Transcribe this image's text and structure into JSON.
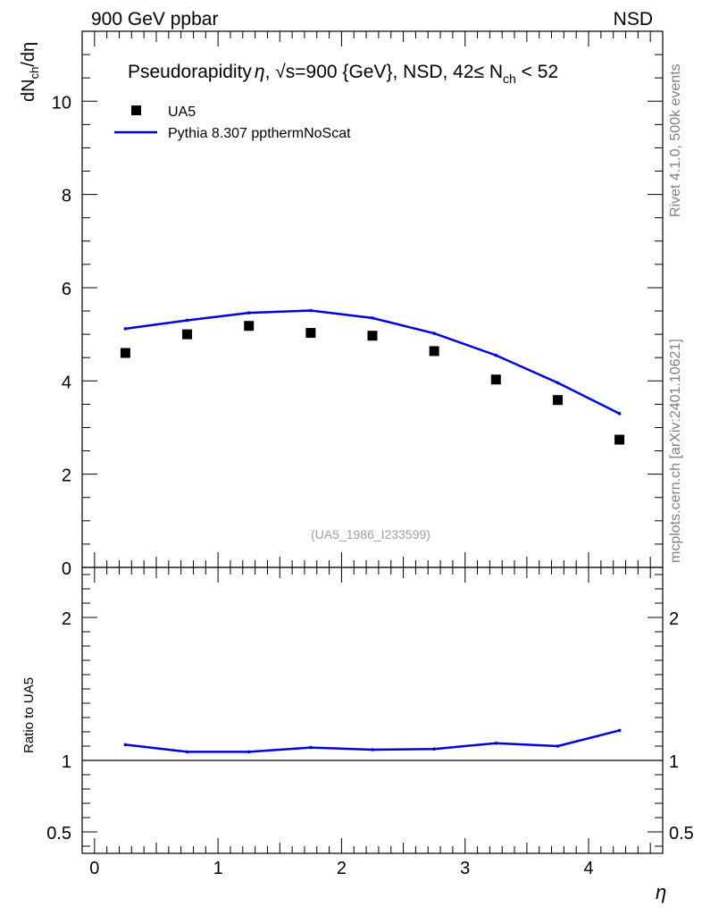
{
  "header": {
    "left": "900 GeV ppbar",
    "right": "NSD"
  },
  "side": {
    "rivet": "Rivet 4.1.0,  500k events",
    "mcplots": "mcplots.cern.ch [arXiv:2401.10621]"
  },
  "chart_data": [
    {
      "type": "scatter",
      "panel": "main",
      "title_parts": {
        "a": "Pseudorapidity",
        "eta": "η",
        "b": ", ",
        "sqrt": "√s",
        "c": "=900 {GeV}, NSD, 42",
        "le": "≤",
        "d": " N",
        "sub": "ch",
        "e": " < 52"
      },
      "ylabel_parts": {
        "a": "dN",
        "sub": "ch",
        "b": "/dη"
      },
      "xlabel": "η",
      "xlim": [
        -0.1,
        4.6
      ],
      "ylim": [
        0,
        11.5
      ],
      "yticks": [
        0,
        2,
        4,
        6,
        8,
        10
      ],
      "ytick_labels": [
        "0",
        "2",
        "4",
        "6",
        "8",
        "10"
      ],
      "reference_id": "(UA5_1986_I233599)",
      "series": [
        {
          "name": "UA5",
          "kind": "markers",
          "color": "#000000",
          "x": [
            0.25,
            0.75,
            1.25,
            1.75,
            2.25,
            2.75,
            3.25,
            3.75,
            4.25
          ],
          "values": [
            4.6,
            5.0,
            5.18,
            5.03,
            4.97,
            4.64,
            4.03,
            3.59,
            2.74
          ]
        },
        {
          "name": "Pythia 8.307 ppthermNoScat",
          "kind": "line",
          "color": "#0000dd",
          "x": [
            0.25,
            0.75,
            1.25,
            1.75,
            2.25,
            2.75,
            3.25,
            3.75,
            4.25
          ],
          "values": [
            5.12,
            5.3,
            5.46,
            5.51,
            5.35,
            5.02,
            4.55,
            3.96,
            3.3
          ]
        }
      ]
    },
    {
      "type": "line",
      "panel": "ratio",
      "ylabel": "Ratio to UA5",
      "xlabel": "η",
      "xlim": [
        -0.1,
        4.6
      ],
      "ylim": [
        0.35,
        2.35
      ],
      "yticks": [
        0.5,
        1,
        2
      ],
      "ytick_labels": [
        "0.5",
        "1",
        "2"
      ],
      "xticks": [
        0,
        1,
        2,
        3,
        4
      ],
      "xtick_labels": [
        "0",
        "1",
        "2",
        "3",
        "4"
      ],
      "reference_line": 1,
      "series": [
        {
          "name": "Pythia 8.307 ppthermNoScat / UA5",
          "color": "#0000dd",
          "x": [
            0.25,
            0.75,
            1.25,
            1.75,
            2.25,
            2.75,
            3.25,
            3.75,
            4.25
          ],
          "values": [
            1.11,
            1.06,
            1.06,
            1.09,
            1.075,
            1.08,
            1.12,
            1.1,
            1.21
          ]
        }
      ]
    }
  ]
}
